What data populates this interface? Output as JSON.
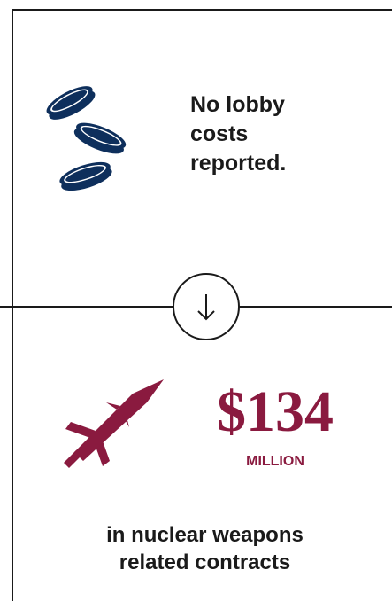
{
  "lobby": {
    "icon": "coins-icon",
    "text": "No lobby\ncosts\nreported.",
    "icon_color": "#0e2f5c"
  },
  "divider": {
    "icon": "arrow-down-icon"
  },
  "contracts": {
    "icon": "missile-icon",
    "icon_color": "#8a1a3f",
    "amount": "$134",
    "unit": "MILLION",
    "description_line1": "in nuclear weapons",
    "description_line2": "related contracts",
    "accent_color": "#8a1a3f"
  }
}
